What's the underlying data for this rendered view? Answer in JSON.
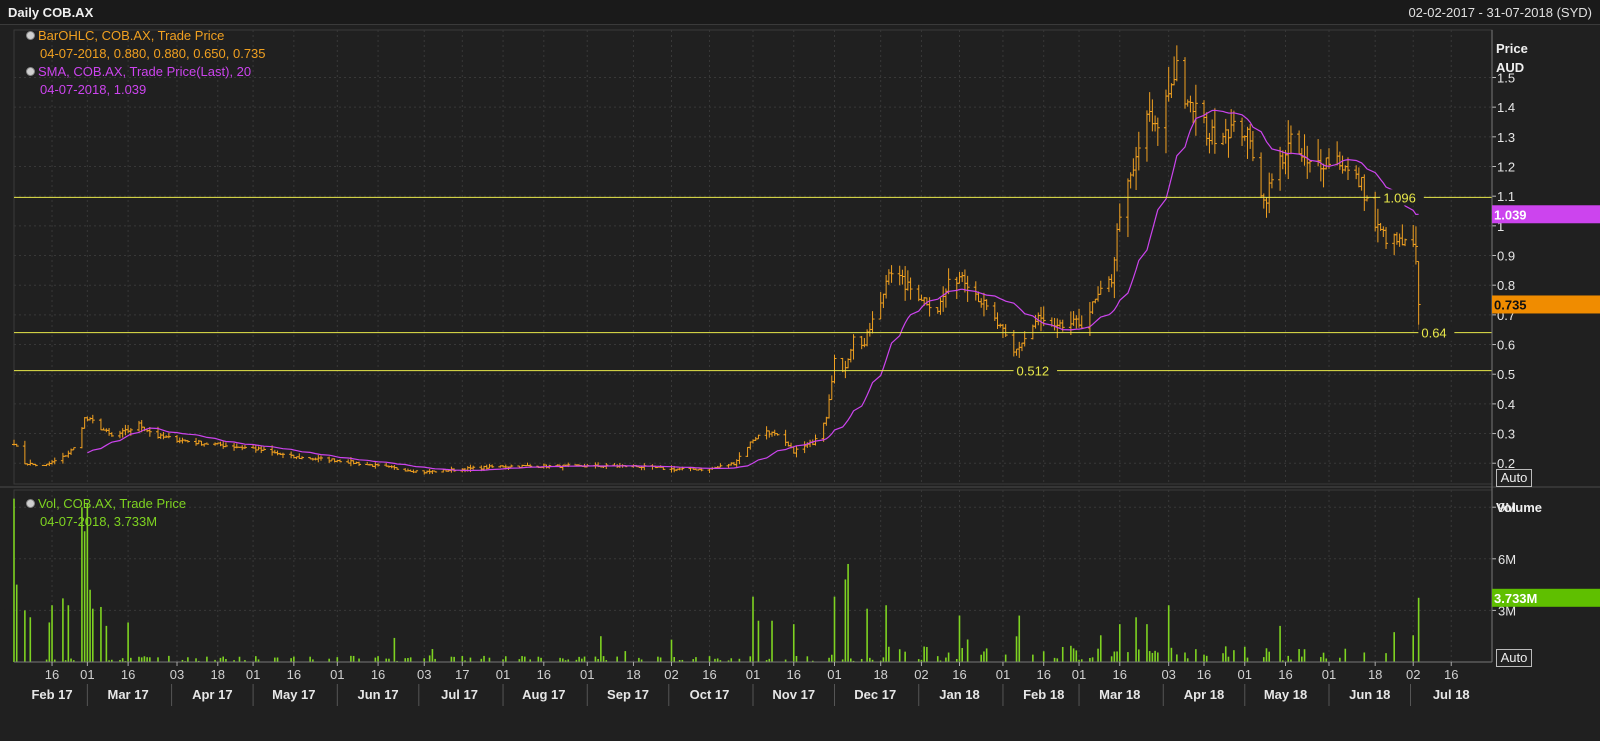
{
  "header": {
    "title": "Daily COB.AX",
    "date_range": "02-02-2017 - 31-07-2018 (SYD)"
  },
  "price_legend": {
    "bar_series": "BarOHLC, COB.AX, Trade Price",
    "bar_values": "04-07-2018, 0.880, 0.880, 0.650, 0.735",
    "sma_series": "SMA, COB.AX, Trade Price(Last),  20",
    "sma_values": "04-07-2018, 1.039"
  },
  "volume_legend": {
    "series": "Vol, COB.AX, Trade Price",
    "values": "04-07-2018, 3.733M"
  },
  "buttons": {
    "auto": "Auto"
  },
  "colors": {
    "ohlc": "#f0a020",
    "sma": "#cc44ee",
    "volume": "#7ed321",
    "hline": "#e8e84a",
    "grid": "#383838"
  },
  "chart_data": [
    {
      "type": "line",
      "title": "Daily COB.AX",
      "ylabel": "Price\nAUD",
      "ylim": [
        0.13,
        1.66
      ],
      "yticks": [
        0.2,
        0.3,
        0.4,
        0.5,
        0.6,
        0.7,
        0.8,
        0.9,
        1,
        1.1,
        1.2,
        1.3,
        1.4,
        1.5
      ],
      "ytick_labels": [
        "0.2",
        "0.3",
        "0.4",
        "0.5",
        "0.6",
        "0.7",
        "0.8",
        "0.9",
        "1",
        "1.1",
        "1.2",
        "1.3",
        "1.4",
        "1.5"
      ],
      "x_range": [
        "2017-02-02",
        "2018-07-31"
      ],
      "x_day_ticks": [
        {
          "date": "2017-02-16",
          "label": "16"
        },
        {
          "date": "2017-03-01",
          "label": "01"
        },
        {
          "date": "2017-03-16",
          "label": "16"
        },
        {
          "date": "2017-04-03",
          "label": "03"
        },
        {
          "date": "2017-04-18",
          "label": "18"
        },
        {
          "date": "2017-05-01",
          "label": "01"
        },
        {
          "date": "2017-05-16",
          "label": "16"
        },
        {
          "date": "2017-06-01",
          "label": "01"
        },
        {
          "date": "2017-06-16",
          "label": "16"
        },
        {
          "date": "2017-07-03",
          "label": "03"
        },
        {
          "date": "2017-07-17",
          "label": "17"
        },
        {
          "date": "2017-08-01",
          "label": "01"
        },
        {
          "date": "2017-08-16",
          "label": "16"
        },
        {
          "date": "2017-09-01",
          "label": "01"
        },
        {
          "date": "2017-09-18",
          "label": "18"
        },
        {
          "date": "2017-10-02",
          "label": "02"
        },
        {
          "date": "2017-10-16",
          "label": "16"
        },
        {
          "date": "2017-11-01",
          "label": "01"
        },
        {
          "date": "2017-11-16",
          "label": "16"
        },
        {
          "date": "2017-12-01",
          "label": "01"
        },
        {
          "date": "2017-12-18",
          "label": "18"
        },
        {
          "date": "2018-01-02",
          "label": "02"
        },
        {
          "date": "2018-01-16",
          "label": "16"
        },
        {
          "date": "2018-02-01",
          "label": "01"
        },
        {
          "date": "2018-02-16",
          "label": "16"
        },
        {
          "date": "2018-03-01",
          "label": "01"
        },
        {
          "date": "2018-03-16",
          "label": "16"
        },
        {
          "date": "2018-04-03",
          "label": "03"
        },
        {
          "date": "2018-04-16",
          "label": "16"
        },
        {
          "date": "2018-05-01",
          "label": "01"
        },
        {
          "date": "2018-05-16",
          "label": "16"
        },
        {
          "date": "2018-06-01",
          "label": "01"
        },
        {
          "date": "2018-06-18",
          "label": "18"
        },
        {
          "date": "2018-07-02",
          "label": "02"
        },
        {
          "date": "2018-07-16",
          "label": "16"
        }
      ],
      "x_month_labels": [
        {
          "date": "2017-02-16",
          "label": "Feb 17"
        },
        {
          "date": "2017-03-16",
          "label": "Mar 17"
        },
        {
          "date": "2017-04-16",
          "label": "Apr 17"
        },
        {
          "date": "2017-05-16",
          "label": "May 17"
        },
        {
          "date": "2017-06-16",
          "label": "Jun 17"
        },
        {
          "date": "2017-07-16",
          "label": "Jul 17"
        },
        {
          "date": "2017-08-16",
          "label": "Aug 17"
        },
        {
          "date": "2017-09-16",
          "label": "Sep 17"
        },
        {
          "date": "2017-10-16",
          "label": "Oct 17"
        },
        {
          "date": "2017-11-16",
          "label": "Nov 17"
        },
        {
          "date": "2017-12-16",
          "label": "Dec 17"
        },
        {
          "date": "2018-01-16",
          "label": "Jan 18"
        },
        {
          "date": "2018-02-16",
          "label": "Feb 18"
        },
        {
          "date": "2018-03-16",
          "label": "Mar 18"
        },
        {
          "date": "2018-04-16",
          "label": "Apr 18"
        },
        {
          "date": "2018-05-16",
          "label": "May 18"
        },
        {
          "date": "2018-06-16",
          "label": "Jun 18"
        },
        {
          "date": "2018-07-16",
          "label": "Jul 18"
        }
      ],
      "close_anchors": [
        [
          "2017-02-02",
          0.27
        ],
        [
          "2017-02-06",
          0.2
        ],
        [
          "2017-02-13",
          0.19
        ],
        [
          "2017-02-20",
          0.22
        ],
        [
          "2017-02-24",
          0.25
        ],
        [
          "2017-02-28",
          0.35
        ],
        [
          "2017-03-03",
          0.34
        ],
        [
          "2017-03-10",
          0.29
        ],
        [
          "2017-03-16",
          0.31
        ],
        [
          "2017-03-20",
          0.33
        ],
        [
          "2017-03-27",
          0.29
        ],
        [
          "2017-04-10",
          0.27
        ],
        [
          "2017-05-01",
          0.25
        ],
        [
          "2017-05-16",
          0.22
        ],
        [
          "2017-06-01",
          0.21
        ],
        [
          "2017-06-16",
          0.19
        ],
        [
          "2017-07-03",
          0.17
        ],
        [
          "2017-07-17",
          0.18
        ],
        [
          "2017-08-01",
          0.19
        ],
        [
          "2017-08-16",
          0.19
        ],
        [
          "2017-09-01",
          0.19
        ],
        [
          "2017-09-18",
          0.19
        ],
        [
          "2017-10-02",
          0.18
        ],
        [
          "2017-10-16",
          0.18
        ],
        [
          "2017-10-25",
          0.2
        ],
        [
          "2017-11-01",
          0.28
        ],
        [
          "2017-11-06",
          0.31
        ],
        [
          "2017-11-10",
          0.29
        ],
        [
          "2017-11-16",
          0.24
        ],
        [
          "2017-11-23",
          0.27
        ],
        [
          "2017-11-28",
          0.36
        ],
        [
          "2017-12-01",
          0.55
        ],
        [
          "2017-12-04",
          0.5
        ],
        [
          "2017-12-08",
          0.62
        ],
        [
          "2017-12-12",
          0.6
        ],
        [
          "2017-12-15",
          0.68
        ],
        [
          "2017-12-18",
          0.73
        ],
        [
          "2017-12-21",
          0.86
        ],
        [
          "2017-12-27",
          0.8
        ],
        [
          "2018-01-02",
          0.76
        ],
        [
          "2018-01-08",
          0.72
        ],
        [
          "2018-01-12",
          0.8
        ],
        [
          "2018-01-17",
          0.84
        ],
        [
          "2018-01-23",
          0.76
        ],
        [
          "2018-02-01",
          0.64
        ],
        [
          "2018-02-05",
          0.57
        ],
        [
          "2018-02-09",
          0.62
        ],
        [
          "2018-02-14",
          0.69
        ],
        [
          "2018-02-20",
          0.65
        ],
        [
          "2018-02-26",
          0.67
        ],
        [
          "2018-03-02",
          0.67
        ],
        [
          "2018-03-08",
          0.76
        ],
        [
          "2018-03-13",
          0.82
        ],
        [
          "2018-03-16",
          1.05
        ],
        [
          "2018-03-21",
          1.18
        ],
        [
          "2018-03-26",
          1.38
        ],
        [
          "2018-03-29",
          1.32
        ],
        [
          "2018-04-03",
          1.45
        ],
        [
          "2018-04-06",
          1.55
        ],
        [
          "2018-04-10",
          1.39
        ],
        [
          "2018-04-13",
          1.4
        ],
        [
          "2018-04-18",
          1.3
        ],
        [
          "2018-04-24",
          1.33
        ],
        [
          "2018-05-01",
          1.32
        ],
        [
          "2018-05-04",
          1.25
        ],
        [
          "2018-05-08",
          1.08
        ],
        [
          "2018-05-14",
          1.22
        ],
        [
          "2018-05-18",
          1.28
        ],
        [
          "2018-05-24",
          1.2
        ],
        [
          "2018-05-30",
          1.22
        ],
        [
          "2018-06-04",
          1.23
        ],
        [
          "2018-06-08",
          1.18
        ],
        [
          "2018-06-13",
          1.14
        ],
        [
          "2018-06-18",
          1.0
        ],
        [
          "2018-06-22",
          0.96
        ],
        [
          "2018-06-28",
          0.94
        ],
        [
          "2018-07-03",
          0.92
        ],
        [
          "2018-07-04",
          0.735
        ]
      ],
      "last_bar": {
        "date": "2018-07-04",
        "open": 0.88,
        "high": 0.88,
        "low": 0.65,
        "close": 0.735
      },
      "sma_20_last": {
        "date": "2018-07-04",
        "value": 1.039
      },
      "price_tag": "0.735",
      "sma_tag": "1.039",
      "horizontal_levels": [
        {
          "value": 1.096,
          "label": "1.096"
        },
        {
          "value": 0.64,
          "label": "0.64"
        },
        {
          "value": 0.512,
          "label": "0.512"
        }
      ]
    },
    {
      "type": "bar",
      "ylabel": "Volume",
      "ylim": [
        0,
        10.0
      ],
      "yticks": [
        3,
        6,
        9
      ],
      "ytick_labels": [
        "3M",
        "6M",
        "9M"
      ],
      "unit": "M",
      "spikes": [
        [
          "2017-02-02",
          9.5
        ],
        [
          "2017-02-03",
          4.5
        ],
        [
          "2017-02-06",
          3.0
        ],
        [
          "2017-02-08",
          2.6
        ],
        [
          "2017-02-15",
          2.3
        ],
        [
          "2017-02-16",
          3.3
        ],
        [
          "2017-02-20",
          3.7
        ],
        [
          "2017-02-22",
          3.3
        ],
        [
          "2017-02-27",
          9.0
        ],
        [
          "2017-02-28",
          7.6
        ],
        [
          "2017-03-01",
          9.2
        ],
        [
          "2017-03-02",
          4.2
        ],
        [
          "2017-03-03",
          3.1
        ],
        [
          "2017-03-06",
          3.2
        ],
        [
          "2017-03-08",
          2.1
        ],
        [
          "2017-03-16",
          2.3
        ],
        [
          "2017-06-22",
          1.4
        ],
        [
          "2017-09-06",
          1.5
        ],
        [
          "2017-10-02",
          1.3
        ],
        [
          "2017-11-01",
          3.8
        ],
        [
          "2017-11-03",
          2.4
        ],
        [
          "2017-11-08",
          2.4
        ],
        [
          "2017-11-16",
          2.2
        ],
        [
          "2017-12-01",
          3.8
        ],
        [
          "2017-12-05",
          4.8
        ],
        [
          "2017-12-06",
          5.7
        ],
        [
          "2017-12-13",
          3.1
        ],
        [
          "2017-12-20",
          3.3
        ],
        [
          "2018-01-16",
          2.7
        ],
        [
          "2018-02-07",
          2.7
        ],
        [
          "2018-03-16",
          2.2
        ],
        [
          "2018-03-22",
          2.6
        ],
        [
          "2018-03-26",
          2.2
        ],
        [
          "2018-04-03",
          3.3
        ],
        [
          "2018-05-14",
          2.1
        ],
        [
          "2018-07-04",
          3.733
        ]
      ],
      "last_value": "3.733M"
    }
  ]
}
